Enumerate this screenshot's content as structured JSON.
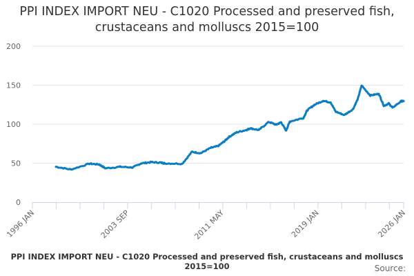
{
  "chart_data": {
    "type": "line",
    "title": "PPI INDEX IMPORT NEU - C1020 Processed and preserved fish, crustaceans and molluscs 2015=100",
    "xlabel": "PPI INDEX IMPORT NEU - C1020 Processed and preserved fish, crustaceans and molluscs 2015=100",
    "ylabel": "",
    "source_label": "Source:",
    "xlim": [
      1996.0,
      2026.0
    ],
    "ylim": [
      0,
      200
    ],
    "yticks": [
      0,
      50,
      100,
      150,
      200
    ],
    "xtick_labels": [
      {
        "label": "1996 JAN",
        "x": 1996.0
      },
      {
        "label": "2003 SEP",
        "x": 2003.67
      },
      {
        "label": "2011 MAY",
        "x": 2011.33
      },
      {
        "label": "2019 JAN",
        "x": 2019.0
      },
      {
        "label": "2026 JAN",
        "x": 2026.0
      }
    ],
    "grid": true,
    "color": "#0b7dc4",
    "series": [
      {
        "name": "PPI INDEX IMPORT NEU - C1020",
        "x": [
          1997.9,
          1999.1,
          2000.6,
          2001.4,
          2001.9,
          2003.1,
          2004.1,
          2004.8,
          2005.6,
          2006.4,
          2006.7,
          2008.1,
          2008.9,
          2009.6,
          2010.4,
          2011.0,
          2011.5,
          2011.9,
          2012.5,
          2013.3,
          2013.6,
          2014.3,
          2015.1,
          2015.7,
          2016.1,
          2016.5,
          2016.8,
          2017.9,
          2018.2,
          2018.8,
          2019.5,
          2020.1,
          2020.5,
          2021.2,
          2021.9,
          2022.3,
          2022.6,
          2023.3,
          2024.0,
          2024.4,
          2024.8,
          2025.1,
          2025.8,
          2026.0
        ],
        "values": [
          45.4,
          41.9,
          49.3,
          48.4,
          43.4,
          45.4,
          44.5,
          49.8,
          51.3,
          50.7,
          49.8,
          49.3,
          64.6,
          62.8,
          69.6,
          71.9,
          77.9,
          83.8,
          89.6,
          92.6,
          94.7,
          92.6,
          102.9,
          99.4,
          102.4,
          91.8,
          103.5,
          108,
          117.7,
          125,
          130,
          128,
          116.2,
          111.8,
          119.2,
          132.5,
          149.6,
          136.9,
          138.9,
          123.6,
          126.5,
          121.2,
          129.5,
          129.5
        ]
      }
    ]
  }
}
